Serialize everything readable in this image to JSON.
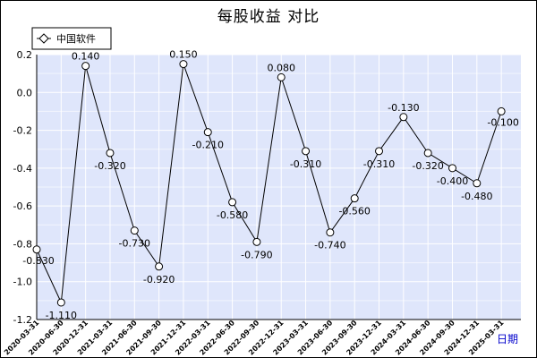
{
  "chart_data": {
    "type": "line",
    "title": "每股收益  对比",
    "xlabel": "日期",
    "ylabel": "",
    "ylim": [
      -1.2,
      0.2
    ],
    "yticks": [
      "0.2",
      "0.0",
      "-0.2",
      "-0.4",
      "-0.6",
      "-0.8",
      "-1.0",
      "-1.2"
    ],
    "x": [
      "2020-03-31",
      "2020-06-30",
      "2020-12-31",
      "2021-03-31",
      "2021-06-30",
      "2021-09-30",
      "2021-12-31",
      "2022-03-31",
      "2022-06-30",
      "2022-09-30",
      "2022-12-31",
      "2023-03-31",
      "2023-06-30",
      "2023-09-30",
      "2023-12-31",
      "2024-03-31",
      "2024-06-30",
      "2024-09-30",
      "2024-12-31",
      "2025-03-31"
    ],
    "series": [
      {
        "name": "中国软件",
        "values": [
          -0.83,
          -1.11,
          0.14,
          -0.32,
          -0.73,
          -0.92,
          0.15,
          -0.21,
          -0.58,
          -0.79,
          0.08,
          -0.31,
          -0.74,
          -0.56,
          -0.31,
          -0.13,
          -0.32,
          -0.4,
          -0.48,
          -0.1
        ],
        "labels": [
          "-0.830",
          "-1.110",
          "0.140",
          "-0.320",
          "-0.730",
          "-0.920",
          "0.150",
          "-0.210",
          "-0.580",
          "-0.790",
          "0.080",
          "-0.310",
          "-0.740",
          "-0.560",
          "-0.310",
          "-0.130",
          "-0.320",
          "-0.400",
          "-0.480",
          "-0.100"
        ]
      }
    ],
    "grid": true,
    "legend": "top-left",
    "colors": {
      "plot_bg": "#dfe6fb",
      "grid": "#ffffff",
      "line": "#000000",
      "marker_fill": "#ffffff"
    }
  }
}
